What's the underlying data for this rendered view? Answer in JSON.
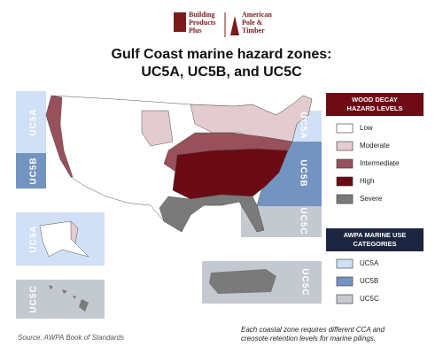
{
  "logo": {
    "left": [
      "Building",
      "Products",
      "Plus"
    ],
    "right": [
      "American",
      "Pole &",
      "Timber"
    ]
  },
  "title": [
    "Gulf Coast marine hazard zones:",
    "UC5A, UC5B, and UC5C"
  ],
  "legends": [
    {
      "title": [
        "WOOD DECAY",
        "HAZARD LEVELS"
      ],
      "items": [
        {
          "label": "Low",
          "color": "#ffffff"
        },
        {
          "label": "Moderate",
          "color": "#e3cbcf"
        },
        {
          "label": "Intermediate",
          "color": "#98505a"
        },
        {
          "label": "High",
          "color": "#6c0a14"
        },
        {
          "label": "Severe",
          "color": "#7a7a7a"
        }
      ]
    },
    {
      "title": [
        "AWPA MARINE USE",
        "CATEGORIES"
      ],
      "items": [
        {
          "label": "UC5A",
          "color": "#cfe0f7"
        },
        {
          "label": "UC5B",
          "color": "#7394c0"
        },
        {
          "label": "UC5C",
          "color": "#c3c9cf"
        }
      ]
    }
  ],
  "zone_labels": [
    "UC5A",
    "UC5B",
    "UC5A",
    "UC5B",
    "UC5C",
    "UC5A",
    "UC5C",
    "UC5C"
  ],
  "source": "Source: AWPA Book of Standards",
  "note": [
    "Each coastal zone requires different CCA and",
    "creosote retention levels for marine pilings."
  ]
}
